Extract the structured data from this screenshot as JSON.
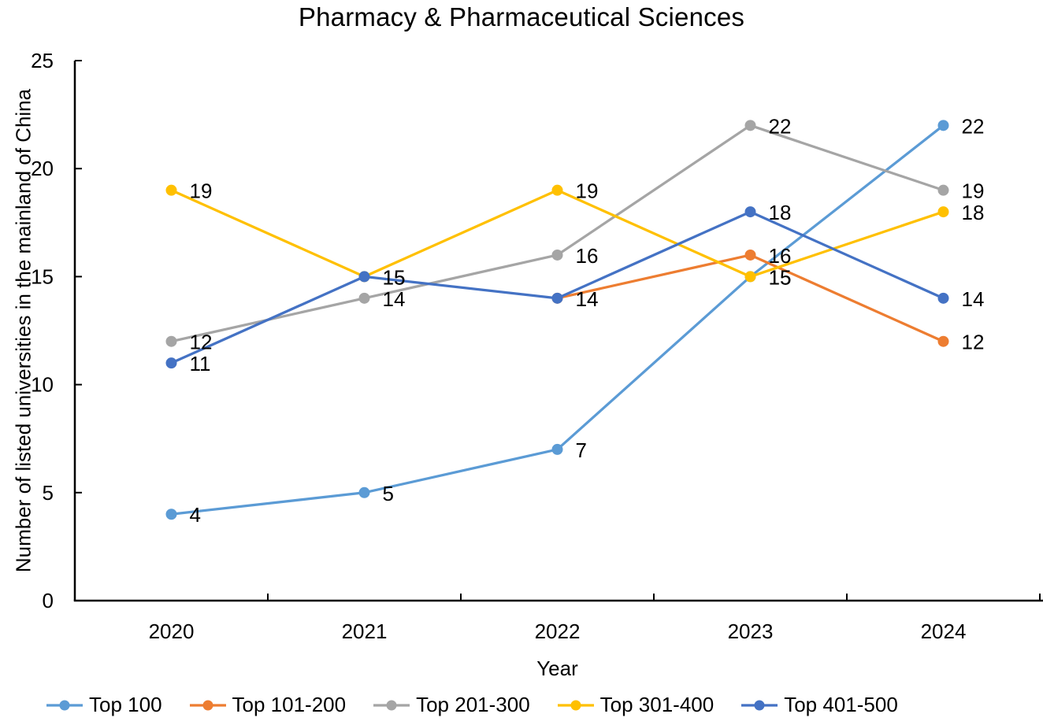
{
  "chart_data": {
    "type": "line",
    "title": "Pharmacy & Pharmaceutical Sciences",
    "xlabel": "Year",
    "ylabel": "Number of listed universities in the mainland of China",
    "categories": [
      "2020",
      "2021",
      "2022",
      "2023",
      "2024"
    ],
    "series": [
      {
        "name": "Top 100",
        "color": "#5B9BD5",
        "values": [
          4,
          5,
          7,
          15,
          22
        ]
      },
      {
        "name": "Top 101-200",
        "color": "#ED7D31",
        "values": [
          null,
          null,
          14,
          16,
          12
        ]
      },
      {
        "name": "Top 201-300",
        "color": "#A5A5A5",
        "values": [
          12,
          14,
          16,
          22,
          19
        ]
      },
      {
        "name": "Top 301-400",
        "color": "#FFC000",
        "values": [
          19,
          15,
          19,
          15,
          18
        ]
      },
      {
        "name": "Top 401-500",
        "color": "#4472C4",
        "values": [
          11,
          15,
          14,
          18,
          14
        ]
      }
    ],
    "ylim": [
      0,
      25
    ],
    "yticks": [
      0,
      5,
      10,
      15,
      20,
      25
    ],
    "grid": false,
    "data_labels": true,
    "legend_position": "bottom",
    "axis_color": "#000000"
  }
}
